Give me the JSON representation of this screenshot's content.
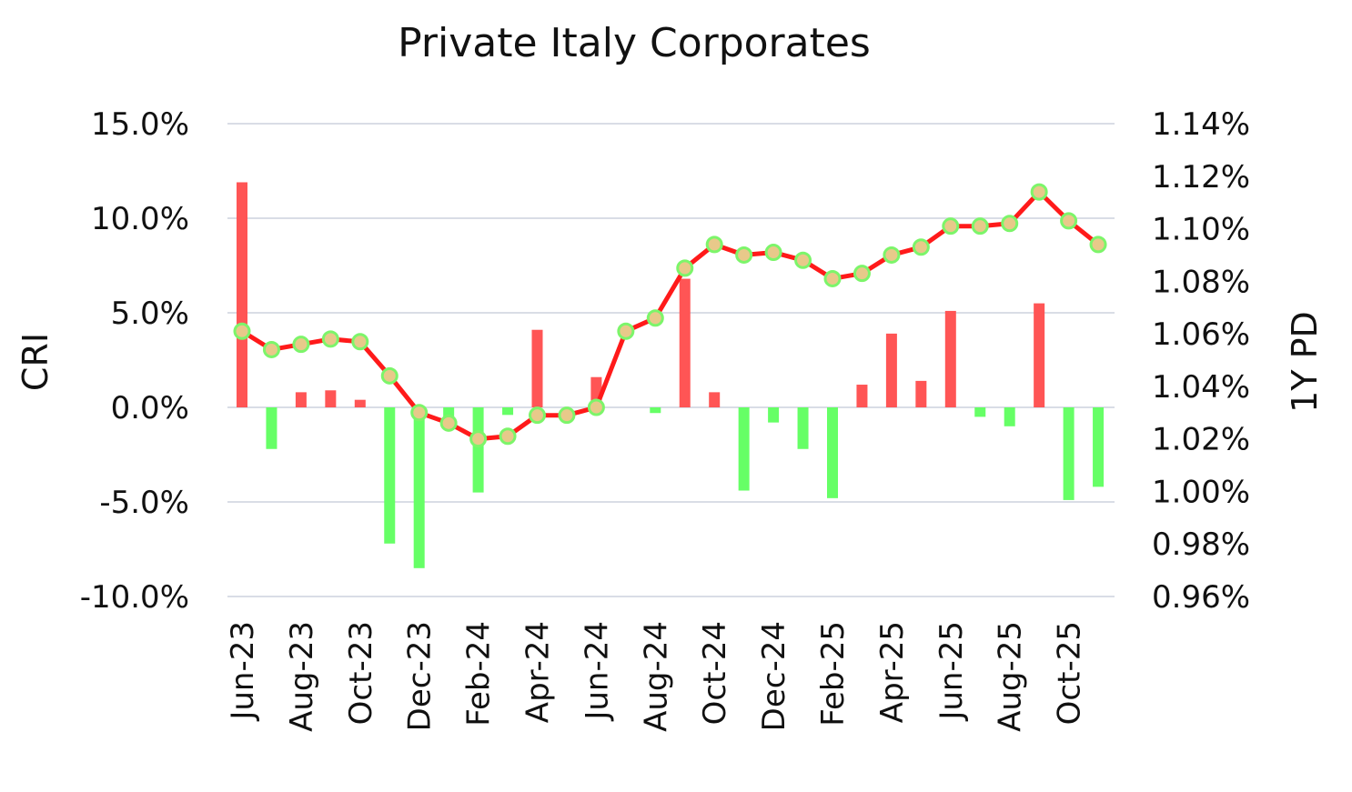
{
  "chart_data": {
    "type": "bar",
    "title": "Private Italy Corporates",
    "ylabel": "CRI",
    "y2label": "1Y PD",
    "ylim": [
      -10,
      15
    ],
    "y2lim": [
      0.96,
      1.14
    ],
    "yticks": [
      "15.0%",
      "10.0%",
      "5.0%",
      "0.0%",
      "-5.0%",
      "-10.0%"
    ],
    "y2ticks": [
      "1.14%",
      "1.12%",
      "1.10%",
      "1.08%",
      "1.06%",
      "1.04%",
      "1.02%",
      "1.00%",
      "0.98%",
      "0.96%"
    ],
    "grid": true,
    "categories": [
      "Jun-23",
      "Jul-23",
      "Aug-23",
      "Sep-23",
      "Oct-23",
      "Nov-23",
      "Dec-23",
      "Jan-24",
      "Feb-24",
      "Mar-24",
      "Apr-24",
      "May-24",
      "Jun-24",
      "Jul-24",
      "Aug-24",
      "Sep-24",
      "Oct-24",
      "Nov-24",
      "Dec-24",
      "Jan-25",
      "Feb-25",
      "Mar-25",
      "Apr-25",
      "May-25",
      "Jun-25",
      "Jul-25",
      "Aug-25",
      "Sep-25",
      "Oct-25",
      "Nov-25"
    ],
    "x_labels_shown": [
      "Jun-23",
      "Aug-23",
      "Oct-23",
      "Dec-23",
      "Feb-24",
      "Apr-24",
      "Jun-24",
      "Aug-24",
      "Oct-24",
      "Dec-24",
      "Feb-25",
      "Apr-25",
      "Jun-25",
      "Aug-25",
      "Oct-25"
    ],
    "series": [
      {
        "name": "CRI",
        "type": "bar",
        "axis": "left",
        "values": [
          11.9,
          -2.2,
          0.8,
          0.9,
          0.4,
          -7.2,
          -8.5,
          -0.6,
          -4.5,
          -0.4,
          4.1,
          0.0,
          1.6,
          0.0,
          -0.3,
          6.8,
          0.8,
          -4.4,
          -0.8,
          -2.2,
          -4.8,
          1.2,
          3.9,
          1.4,
          5.1,
          -0.5,
          -1.0,
          5.5,
          -4.9,
          -4.2
        ]
      },
      {
        "name": "1Y PD",
        "type": "line",
        "axis": "right",
        "values": [
          1.061,
          1.054,
          1.056,
          1.058,
          1.057,
          1.044,
          1.03,
          1.026,
          1.02,
          1.021,
          1.029,
          1.029,
          1.032,
          1.061,
          1.066,
          1.085,
          1.094,
          1.09,
          1.091,
          1.088,
          1.081,
          1.083,
          1.09,
          1.093,
          1.101,
          1.101,
          1.102,
          1.114,
          1.103,
          1.094
        ]
      }
    ],
    "colors": {
      "positive_bar": "#ff5555",
      "negative_bar": "#66ff66",
      "line": "#ff1a1a",
      "marker_fill": "#e8c98a",
      "marker_edge": "#7cf56a"
    }
  }
}
